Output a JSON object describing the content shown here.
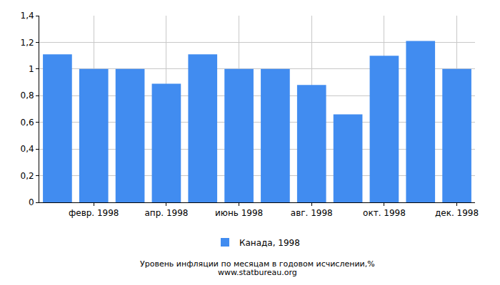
{
  "chart_data": {
    "type": "bar",
    "title": "Уровень инфляции по месяцам в годовом исчислении,%",
    "subtitle": "www.statbureau.org",
    "categories": [
      null,
      "февр. 1998",
      null,
      "апр. 1998",
      null,
      "июнь 1998",
      null,
      "авг. 1998",
      null,
      "окт. 1998",
      null,
      "дек. 1998"
    ],
    "series": [
      {
        "name": "Канада, 1998",
        "color": "#418cf0",
        "values": [
          1.11,
          1.0,
          1.0,
          0.89,
          1.11,
          1.0,
          1.0,
          0.88,
          0.66,
          1.1,
          1.21,
          1.0
        ]
      }
    ],
    "ylim": [
      0,
      1.4
    ],
    "yticks": [
      0,
      {
        "value": 0.2,
        "label": "0,2"
      },
      {
        "value": 0.4,
        "label": "0,4"
      },
      {
        "value": 0.6,
        "label": "0,6"
      },
      {
        "value": 0.8,
        "label": "0,8"
      },
      1,
      {
        "value": 1.2,
        "label": "1,2"
      },
      {
        "value": 1.4,
        "label": "1,4"
      }
    ],
    "grid": true,
    "legend": "bottom"
  }
}
